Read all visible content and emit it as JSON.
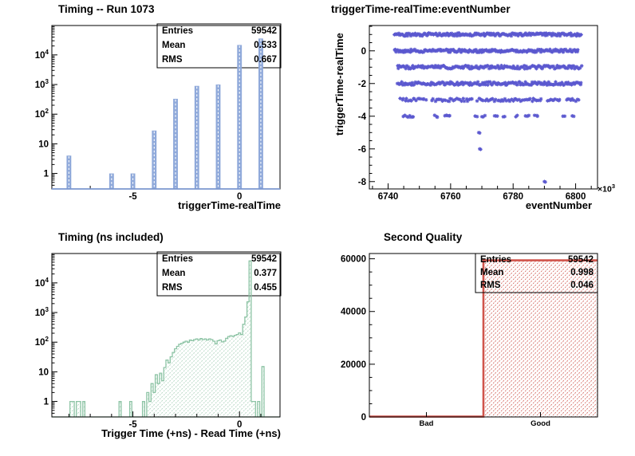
{
  "canvas": {
    "background": "#ffffff"
  },
  "colors": {
    "blue_fill": "#8fa9da",
    "blue_line": "#7b97cf",
    "green_line": "#8cc3a4",
    "green_hatch": "#aed4bd",
    "red_line": "#d0544b",
    "red_hatch": "#d4675f",
    "marker": "#5b58cf",
    "frame": "#000000"
  },
  "panels": {
    "timing_run": {
      "title": "Timing -- Run 1073",
      "xlabel": "triggerTime-realTime",
      "stats": {
        "entries_label": "Entries",
        "entries": "59542",
        "mean_label": "Mean",
        "mean": "0.533",
        "rms_label": "RMS",
        "rms": "0.667"
      }
    },
    "scatter": {
      "title": "triggerTime-realTime:eventNumber",
      "xlabel": "eventNumber",
      "ylabel": "triggerTime-realTime",
      "exponent_base": "×10",
      "exponent_pow": "3"
    },
    "timing_ns": {
      "title": "Timing (ns included)",
      "xlabel": "Trigger Time (+ns) - Read Time (+ns)",
      "stats": {
        "entries_label": "Entries",
        "entries": "59542",
        "mean_label": "Mean",
        "mean": "0.377",
        "rms_label": "RMS",
        "rms": "0.455"
      }
    },
    "quality": {
      "title": "Second Quality",
      "stats": {
        "entries_label": "Entries",
        "entries": "59542",
        "mean_label": "Mean",
        "mean": "0.998",
        "rms_label": "RMS",
        "rms": "0.046"
      }
    }
  },
  "chart_data": [
    {
      "panel": "p1",
      "type": "bar",
      "yscale": "log",
      "title": "Timing -- Run 1073",
      "xlabel": "triggerTime-realTime",
      "ylabel": "",
      "xlim": [
        -8.8,
        1.9
      ],
      "ylim": [
        0.3,
        98000
      ],
      "xticks_labeled": [
        -5,
        0
      ],
      "xtick_minor_step": 1,
      "yticks_decades": [
        1,
        10,
        100,
        1000,
        10000
      ],
      "bar_halfwidth": 0.11,
      "bars": [
        [
          -8,
          4
        ],
        [
          -6,
          1
        ],
        [
          -5,
          1
        ],
        [
          -4,
          28
        ],
        [
          -3,
          330
        ],
        [
          -2,
          900
        ],
        [
          -1,
          1000
        ],
        [
          0,
          21600
        ],
        [
          1,
          35680
        ]
      ],
      "stats": {
        "entries": 59542,
        "mean": 0.533,
        "rms": 0.667
      },
      "stats_box_opaque": true
    },
    {
      "panel": "p2",
      "type": "scatter",
      "title": "triggerTime-realTime:eventNumber",
      "xlabel": "eventNumber",
      "ylabel": "triggerTime-realTime",
      "x_unit_exponent": "x10^3",
      "xlim": [
        6734,
        6807
      ],
      "ylim": [
        -8.45,
        1.55
      ],
      "xticks_labeled": [
        6740,
        6760,
        6780,
        6800
      ],
      "xtick_minor_step": 5,
      "yticks_labeled": [
        0,
        -2,
        -4,
        -6,
        -8
      ],
      "ytick_minor_step": 0.5,
      "bands": [
        {
          "y": 1,
          "step": 0.3,
          "jitter": 0.09,
          "segments": [
            [
              6742,
              6802
            ]
          ]
        },
        {
          "y": 0,
          "step": 0.3,
          "jitter": 0.09,
          "segments": [
            [
              6742,
              6801
            ]
          ]
        },
        {
          "y": -1,
          "step": 0.34,
          "jitter": 0.1,
          "segments": [
            [
              6743,
              6802
            ]
          ]
        },
        {
          "y": -2,
          "step": 0.34,
          "jitter": 0.1,
          "segments": [
            [
              6743,
              6802
            ]
          ]
        },
        {
          "y": -3,
          "step": 0.5,
          "jitter": 0.09,
          "segments": [
            [
              6744,
              6752
            ],
            [
              6754,
              6767
            ],
            [
              6768.5,
              6789
            ],
            [
              6791,
              6795
            ],
            [
              6797,
              6801
            ]
          ]
        },
        {
          "y": -4,
          "step": 0.45,
          "jitter": 0.06,
          "segments": [
            [
              6745,
              6748.2
            ],
            [
              6755,
              6756
            ],
            [
              6758,
              6760
            ],
            [
              6768,
              6768.6
            ],
            [
              6770,
              6771
            ],
            [
              6774,
              6775
            ],
            [
              6777,
              6777.6
            ],
            [
              6781,
              6781.6
            ],
            [
              6784,
              6785
            ],
            [
              6787,
              6788
            ],
            [
              6796,
              6796.6
            ],
            [
              6799,
              6799.6
            ]
          ]
        }
      ],
      "points": [
        [
          6769,
          -5
        ],
        [
          6769.3,
          -6
        ],
        [
          6790,
          -8
        ]
      ]
    },
    {
      "panel": "p3",
      "type": "step",
      "yscale": "log",
      "title": "Timing (ns included)",
      "xlabel": "Trigger Time (+ns) - Read Time (+ns)",
      "ylabel": "",
      "xlim": [
        -8.8,
        1.9
      ],
      "ylim": [
        0.3,
        98000
      ],
      "xticks_labeled": [
        -5,
        0
      ],
      "xtick_minor_step": 1,
      "yticks_decades": [
        1,
        10,
        100,
        1000,
        10000
      ],
      "bin_width": 0.1,
      "bins": [
        [
          -7.95,
          1
        ],
        [
          -7.85,
          1
        ],
        [
          -7.65,
          1
        ],
        [
          -7.55,
          1
        ],
        [
          -7.35,
          1
        ],
        [
          -5.65,
          1
        ],
        [
          -5.15,
          1
        ],
        [
          -4.55,
          1
        ],
        [
          -4.35,
          2
        ],
        [
          -4.25,
          1
        ],
        [
          -4.15,
          4
        ],
        [
          -4.05,
          2
        ],
        [
          -3.95,
          8
        ],
        [
          -3.85,
          4
        ],
        [
          -3.75,
          9
        ],
        [
          -3.65,
          5
        ],
        [
          -3.55,
          14
        ],
        [
          -3.45,
          25
        ],
        [
          -3.35,
          20
        ],
        [
          -3.25,
          32
        ],
        [
          -3.15,
          45
        ],
        [
          -3.05,
          60
        ],
        [
          -2.95,
          72
        ],
        [
          -2.85,
          85
        ],
        [
          -2.75,
          92
        ],
        [
          -2.65,
          100
        ],
        [
          -2.55,
          108
        ],
        [
          -2.45,
          100
        ],
        [
          -2.35,
          118
        ],
        [
          -2.25,
          112
        ],
        [
          -2.15,
          122
        ],
        [
          -2.05,
          128
        ],
        [
          -1.95,
          118
        ],
        [
          -1.85,
          132
        ],
        [
          -1.75,
          122
        ],
        [
          -1.65,
          128
        ],
        [
          -1.55,
          118
        ],
        [
          -1.45,
          128
        ],
        [
          -1.35,
          122
        ],
        [
          -1.25,
          108
        ],
        [
          -1.15,
          88
        ],
        [
          -1.05,
          112
        ],
        [
          -0.95,
          118
        ],
        [
          -0.85,
          102
        ],
        [
          -0.75,
          108
        ],
        [
          -0.65,
          135
        ],
        [
          -0.55,
          155
        ],
        [
          -0.45,
          165
        ],
        [
          -0.35,
          155
        ],
        [
          -0.25,
          170
        ],
        [
          -0.15,
          180
        ],
        [
          -0.05,
          205
        ],
        [
          0.05,
          180
        ],
        [
          0.15,
          400
        ],
        [
          0.25,
          710
        ],
        [
          0.35,
          2300
        ],
        [
          0.45,
          55000
        ],
        [
          0.55,
          1
        ],
        [
          0.65,
          1
        ],
        [
          0.85,
          1
        ],
        [
          1.05,
          15
        ]
      ],
      "stats": {
        "entries": 59542,
        "mean": 0.377,
        "rms": 0.455
      },
      "stats_box_opaque": true
    },
    {
      "panel": "p4",
      "type": "step_linear",
      "title": "Second Quality",
      "xlabel": "",
      "ylabel": "",
      "xlim": [
        0,
        2
      ],
      "ylim": [
        0,
        62000
      ],
      "yticks_labeled": [
        0,
        20000,
        40000,
        60000
      ],
      "ytick_minor_step": 5000,
      "categories": [
        {
          "label": "Bad",
          "x": 0.5
        },
        {
          "label": "Good",
          "x": 1.5
        }
      ],
      "bins": [
        [
          0,
          1,
          119
        ],
        [
          1,
          2,
          59423
        ]
      ],
      "stats": {
        "entries": 59542,
        "mean": 0.998,
        "rms": 0.046
      },
      "stats_box_opaque": false
    }
  ]
}
